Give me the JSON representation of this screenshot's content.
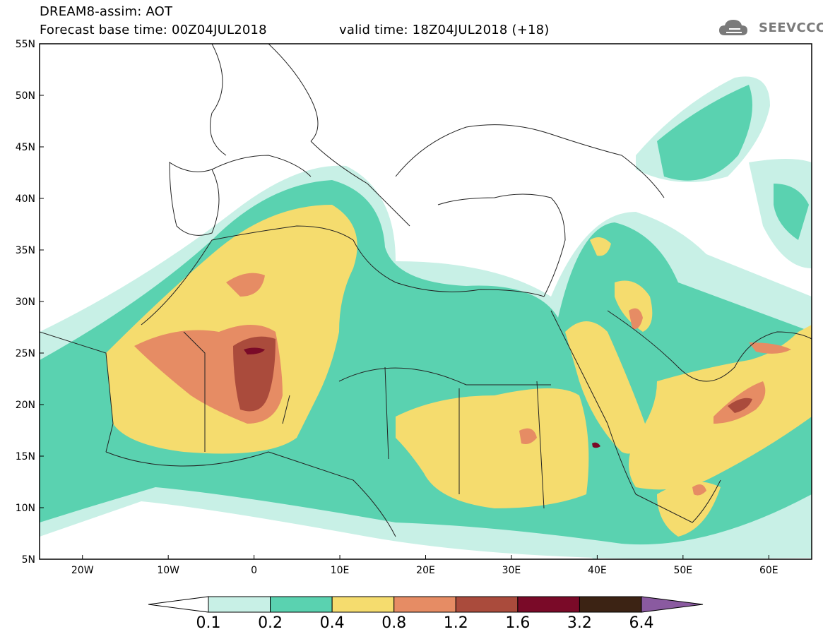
{
  "title": {
    "line1": "DREAM8-assim: AOT",
    "line2": "Forecast base time: 00Z04JUL2018",
    "valid": "valid time: 18Z04JUL2018 (+18)"
  },
  "logo": {
    "text": "SEEVCCC",
    "icon": "cloud-logo-icon"
  },
  "map": {
    "lon_range": [
      -25,
      65
    ],
    "lat_range": [
      5,
      55
    ],
    "lat_ticks": [
      "5N",
      "10N",
      "15N",
      "20N",
      "25N",
      "30N",
      "35N",
      "40N",
      "45N",
      "50N",
      "55N"
    ],
    "lon_ticks": [
      "20W",
      "10W",
      "0",
      "10E",
      "20E",
      "30E",
      "40E",
      "50E",
      "60E"
    ]
  },
  "colorbar": {
    "labels": [
      "0.1",
      "0.2",
      "0.4",
      "0.8",
      "1.2",
      "1.6",
      "3.2",
      "6.4"
    ],
    "colors": [
      "#ffffff",
      "#c8f0e6",
      "#5ad2b0",
      "#f5dc6e",
      "#e68c64",
      "#aa4b3c",
      "#7a0a28",
      "#3c2314",
      "#8a5aa0"
    ]
  }
}
